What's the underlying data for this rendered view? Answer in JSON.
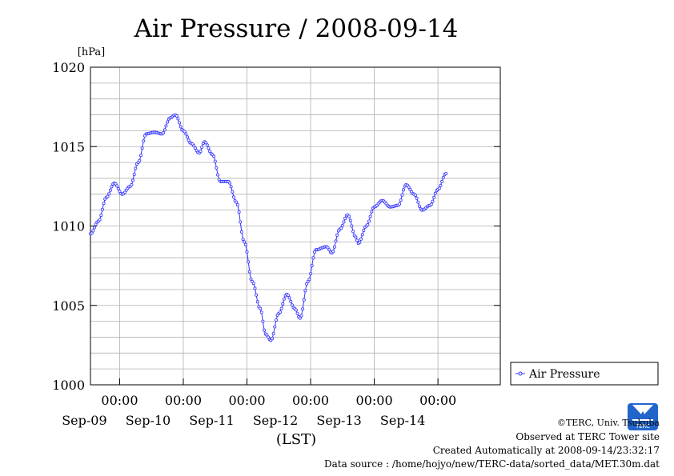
{
  "chart_data": {
    "type": "line",
    "title": "Air Pressure / 2008-09-14",
    "ylabel": "[hPa]",
    "xlabel": "(LST)",
    "ylim": [
      1000,
      1020
    ],
    "yticks": [
      "1000",
      "1005",
      "1010",
      "1015",
      "1020"
    ],
    "xticks": [
      {
        "time": "00:00",
        "date": "Sep-09"
      },
      {
        "time": "00:00",
        "date": "Sep-10"
      },
      {
        "time": "00:00",
        "date": "Sep-11"
      },
      {
        "time": "00:00",
        "date": "Sep-12"
      },
      {
        "time": "00:00",
        "date": "Sep-13"
      },
      {
        "time": "00:00",
        "date": "Sep-14"
      }
    ],
    "x_range": [
      "2008-09-08 13:00",
      "2008-09-14 23:30"
    ],
    "sample_interval_minutes": 30,
    "grid": true,
    "legend_position": "right",
    "series": [
      {
        "name": "Air Pressure",
        "color": "#3333ff",
        "points": [
          [
            "2008-09-08 13:00",
            1009.5
          ],
          [
            "2008-09-08 16:00",
            1010.3
          ],
          [
            "2008-09-08 19:00",
            1011.8
          ],
          [
            "2008-09-08 22:00",
            1012.7
          ],
          [
            "2008-09-09 01:00",
            1012.0
          ],
          [
            "2008-09-09 04:00",
            1012.5
          ],
          [
            "2008-09-09 07:00",
            1014.0
          ],
          [
            "2008-09-09 10:00",
            1015.8
          ],
          [
            "2008-09-09 13:00",
            1015.9
          ],
          [
            "2008-09-09 16:00",
            1015.8
          ],
          [
            "2008-09-09 19:00",
            1016.8
          ],
          [
            "2008-09-09 21:00",
            1017.0
          ],
          [
            "2008-09-10 00:00",
            1016.0
          ],
          [
            "2008-09-10 03:00",
            1015.2
          ],
          [
            "2008-09-10 06:00",
            1014.6
          ],
          [
            "2008-09-10 08:00",
            1015.3
          ],
          [
            "2008-09-10 11:00",
            1014.5
          ],
          [
            "2008-09-10 14:00",
            1012.8
          ],
          [
            "2008-09-10 17:00",
            1012.8
          ],
          [
            "2008-09-10 20:00",
            1011.5
          ],
          [
            "2008-09-10 23:00",
            1009.0
          ],
          [
            "2008-09-11 02:00",
            1006.5
          ],
          [
            "2008-09-11 05:00",
            1004.8
          ],
          [
            "2008-09-11 07:00",
            1003.2
          ],
          [
            "2008-09-11 09:00",
            1002.8
          ],
          [
            "2008-09-11 12:00",
            1004.5
          ],
          [
            "2008-09-11 15:00",
            1005.7
          ],
          [
            "2008-09-11 18:00",
            1004.8
          ],
          [
            "2008-09-11 20:00",
            1004.2
          ],
          [
            "2008-09-11 23:00",
            1006.5
          ],
          [
            "2008-09-12 02:00",
            1008.5
          ],
          [
            "2008-09-12 06:00",
            1008.7
          ],
          [
            "2008-09-12 08:00",
            1008.3
          ],
          [
            "2008-09-12 11:00",
            1009.8
          ],
          [
            "2008-09-12 14:00",
            1010.7
          ],
          [
            "2008-09-12 17:00",
            1009.3
          ],
          [
            "2008-09-12 18:00",
            1008.9
          ],
          [
            "2008-09-12 21:00",
            1010.0
          ],
          [
            "2008-09-13 00:00",
            1011.2
          ],
          [
            "2008-09-13 03:00",
            1011.6
          ],
          [
            "2008-09-13 06:00",
            1011.2
          ],
          [
            "2008-09-13 09:00",
            1011.3
          ],
          [
            "2008-09-13 12:00",
            1012.6
          ],
          [
            "2008-09-13 15:00",
            1012.0
          ],
          [
            "2008-09-13 18:00",
            1011.0
          ],
          [
            "2008-09-13 21:00",
            1011.3
          ],
          [
            "2008-09-14 00:00",
            1012.3
          ],
          [
            "2008-09-14 03:00",
            1013.3
          ]
        ]
      }
    ]
  },
  "credits": {
    "copyright": "©TERC, Univ. Tsukuba",
    "observed": "Observed at TERC Tower site",
    "created": "Created Automatically at 2008-09-14/23:32:17",
    "source": "Data source : /home/hojyo/new/TERC-data/sorted_data/MET.30m.dat"
  },
  "logo": {
    "text": "TERC",
    "color": "#2266cc"
  }
}
